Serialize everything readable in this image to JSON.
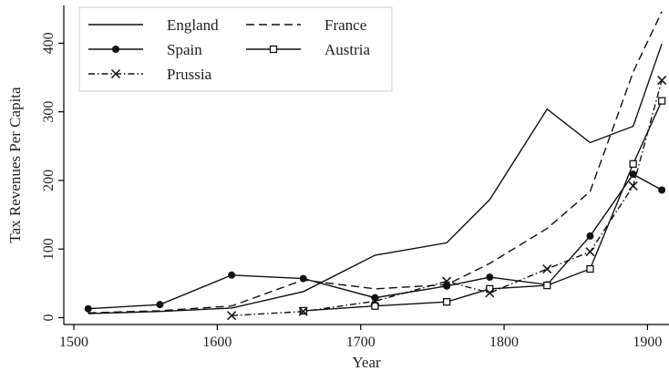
{
  "chart_data": {
    "type": "line",
    "title": "",
    "xlabel": "Year",
    "ylabel": "Tax Revenues Per Capita",
    "xlim": [
      1493,
      1915
    ],
    "ylim": [
      -10,
      455
    ],
    "xticks": [
      1500,
      1600,
      1700,
      1800,
      1900
    ],
    "yticks": [
      0,
      100,
      200,
      300,
      400
    ],
    "grid": false,
    "legend_position": "top-left",
    "series": [
      {
        "name": "England",
        "style": "solid",
        "marker": "none",
        "color": "#111111",
        "points": [
          [
            1510,
            6
          ],
          [
            1560,
            9
          ],
          [
            1610,
            14
          ],
          [
            1660,
            38
          ],
          [
            1710,
            91
          ],
          [
            1760,
            109
          ],
          [
            1790,
            172
          ],
          [
            1830,
            304
          ],
          [
            1860,
            255
          ],
          [
            1890,
            279
          ],
          [
            1910,
            399
          ]
        ]
      },
      {
        "name": "France",
        "style": "dashed",
        "marker": "none",
        "color": "#111111",
        "points": [
          [
            1510,
            7
          ],
          [
            1560,
            10
          ],
          [
            1610,
            17
          ],
          [
            1660,
            55
          ],
          [
            1710,
            42
          ],
          [
            1760,
            48
          ],
          [
            1790,
            79
          ],
          [
            1830,
            130
          ],
          [
            1860,
            184
          ],
          [
            1890,
            358
          ],
          [
            1910,
            446
          ]
        ]
      },
      {
        "name": "Spain",
        "style": "solid",
        "marker": "filled-circle",
        "color": "#111111",
        "points": [
          [
            1510,
            13
          ],
          [
            1560,
            19
          ],
          [
            1610,
            62
          ],
          [
            1660,
            57
          ],
          [
            1710,
            29
          ],
          [
            1760,
            46
          ],
          [
            1790,
            59
          ],
          [
            1830,
            48
          ],
          [
            1860,
            119
          ],
          [
            1890,
            209
          ],
          [
            1910,
            186
          ]
        ]
      },
      {
        "name": "Austria",
        "style": "solid",
        "marker": "open-square",
        "color": "#111111",
        "points": [
          [
            1660,
            10
          ],
          [
            1710,
            17
          ],
          [
            1760,
            23
          ],
          [
            1790,
            42
          ],
          [
            1830,
            47
          ],
          [
            1860,
            71
          ],
          [
            1890,
            224
          ],
          [
            1910,
            316
          ]
        ]
      },
      {
        "name": "Prussia",
        "style": "dashdot",
        "marker": "x",
        "color": "#111111",
        "points": [
          [
            1610,
            3
          ],
          [
            1660,
            9
          ],
          [
            1710,
            24
          ],
          [
            1760,
            53
          ],
          [
            1790,
            36
          ],
          [
            1830,
            71
          ],
          [
            1860,
            96
          ],
          [
            1890,
            192
          ],
          [
            1910,
            346
          ]
        ]
      }
    ]
  }
}
